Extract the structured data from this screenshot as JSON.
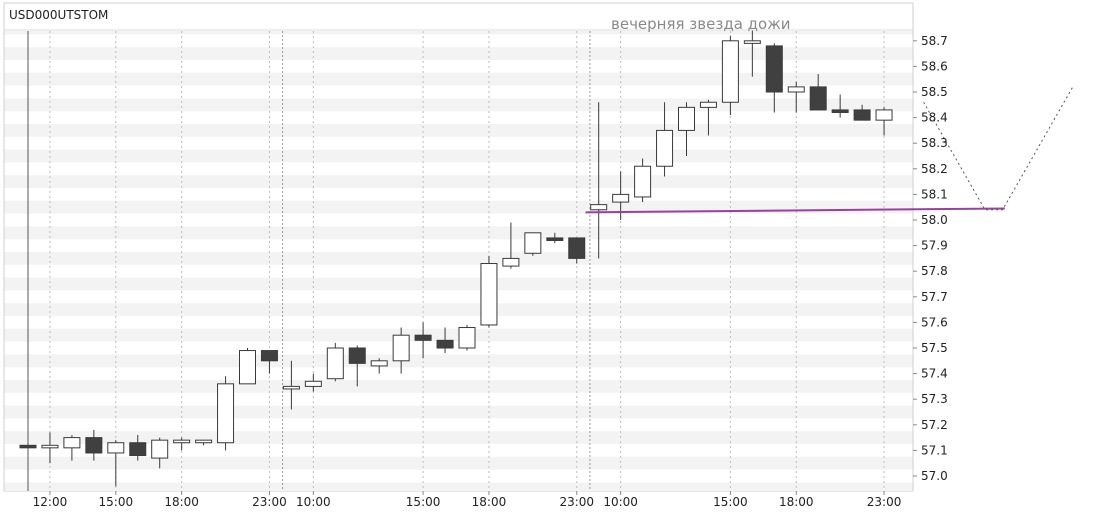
{
  "chart_data": {
    "type": "candlestick",
    "title": "USD000UTSTOM",
    "annotation": "вечерняя звезда дожи",
    "ylim": [
      56.96,
      58.74
    ],
    "y_ticks": [
      "57.0",
      "57.1",
      "57.2",
      "57.3",
      "57.4",
      "57.5",
      "57.6",
      "57.7",
      "57.8",
      "57.9",
      "58.0",
      "58.1",
      "58.2",
      "58.3",
      "58.4",
      "58.5",
      "58.6",
      "58.7"
    ],
    "x_ticks": [
      {
        "label": "12:00",
        "index": 1
      },
      {
        "label": "15:00",
        "index": 4
      },
      {
        "label": "18:00",
        "index": 7
      },
      {
        "label": "23:00",
        "index": 11
      },
      {
        "label": "10:00",
        "index": 13
      },
      {
        "label": "15:00",
        "index": 18
      },
      {
        "label": "18:00",
        "index": 21
      },
      {
        "label": "23:00",
        "index": 25
      },
      {
        "label": "10:00",
        "index": 27
      },
      {
        "label": "15:00",
        "index": 32
      },
      {
        "label": "18:00",
        "index": 35
      },
      {
        "label": "23:00",
        "index": 39
      }
    ],
    "session_separators": [
      11.6,
      25.6
    ],
    "candles": [
      {
        "o": 57.12,
        "h": 57.12,
        "l": 57.11,
        "c": 57.11
      },
      {
        "o": 57.11,
        "h": 57.17,
        "l": 57.05,
        "c": 57.12
      },
      {
        "o": 57.11,
        "h": 57.16,
        "l": 57.06,
        "c": 57.15
      },
      {
        "o": 57.15,
        "h": 57.18,
        "l": 57.06,
        "c": 57.09
      },
      {
        "o": 57.09,
        "h": 57.14,
        "l": 56.96,
        "c": 57.13
      },
      {
        "o": 57.13,
        "h": 57.16,
        "l": 57.06,
        "c": 57.08
      },
      {
        "o": 57.07,
        "h": 57.15,
        "l": 57.03,
        "c": 57.14
      },
      {
        "o": 57.13,
        "h": 57.15,
        "l": 57.1,
        "c": 57.14
      },
      {
        "o": 57.13,
        "h": 57.14,
        "l": 57.12,
        "c": 57.14
      },
      {
        "o": 57.13,
        "h": 57.39,
        "l": 57.1,
        "c": 57.36
      },
      {
        "o": 57.36,
        "h": 57.5,
        "l": 57.36,
        "c": 57.49
      },
      {
        "o": 57.49,
        "h": 57.49,
        "l": 57.4,
        "c": 57.45
      },
      {
        "o": 57.34,
        "h": 57.45,
        "l": 57.26,
        "c": 57.35
      },
      {
        "o": 57.35,
        "h": 57.4,
        "l": 57.33,
        "c": 57.37
      },
      {
        "o": 57.38,
        "h": 57.52,
        "l": 57.37,
        "c": 57.5
      },
      {
        "o": 57.5,
        "h": 57.51,
        "l": 57.35,
        "c": 57.44
      },
      {
        "o": 57.43,
        "h": 57.46,
        "l": 57.4,
        "c": 57.45
      },
      {
        "o": 57.45,
        "h": 57.58,
        "l": 57.4,
        "c": 57.55
      },
      {
        "o": 57.55,
        "h": 57.6,
        "l": 57.46,
        "c": 57.53
      },
      {
        "o": 57.53,
        "h": 57.58,
        "l": 57.48,
        "c": 57.5
      },
      {
        "o": 57.5,
        "h": 57.59,
        "l": 57.49,
        "c": 57.58
      },
      {
        "o": 57.59,
        "h": 57.86,
        "l": 57.58,
        "c": 57.83
      },
      {
        "o": 57.82,
        "h": 57.99,
        "l": 57.81,
        "c": 57.85
      },
      {
        "o": 57.87,
        "h": 57.95,
        "l": 57.86,
        "c": 57.95
      },
      {
        "o": 57.93,
        "h": 57.95,
        "l": 57.91,
        "c": 57.92
      },
      {
        "o": 57.93,
        "h": 57.93,
        "l": 57.83,
        "c": 57.85
      },
      {
        "o": 58.04,
        "h": 58.46,
        "l": 57.85,
        "c": 58.06
      },
      {
        "o": 58.07,
        "h": 58.19,
        "l": 58.0,
        "c": 58.1
      },
      {
        "o": 58.09,
        "h": 58.24,
        "l": 58.07,
        "c": 58.21
      },
      {
        "o": 58.21,
        "h": 58.46,
        "l": 58.17,
        "c": 58.35
      },
      {
        "o": 58.35,
        "h": 58.46,
        "l": 58.25,
        "c": 58.44
      },
      {
        "o": 58.44,
        "h": 58.47,
        "l": 58.33,
        "c": 58.46
      },
      {
        "o": 58.46,
        "h": 58.72,
        "l": 58.41,
        "c": 58.7
      },
      {
        "o": 58.69,
        "h": 58.74,
        "l": 58.56,
        "c": 58.7
      },
      {
        "o": 58.68,
        "h": 58.69,
        "l": 58.42,
        "c": 58.5
      },
      {
        "o": 58.5,
        "h": 58.54,
        "l": 58.42,
        "c": 58.52
      },
      {
        "o": 58.52,
        "h": 58.57,
        "l": 58.43,
        "c": 58.43
      },
      {
        "o": 58.43,
        "h": 58.49,
        "l": 58.4,
        "c": 58.42
      },
      {
        "o": 58.43,
        "h": 58.45,
        "l": 58.39,
        "c": 58.39
      },
      {
        "o": 58.39,
        "h": 58.44,
        "l": 58.33,
        "c": 58.43
      }
    ],
    "support_line": {
      "color": "#9b3fa2",
      "from": {
        "index": 25.4,
        "value": 58.03
      },
      "to": {
        "index": 44.5,
        "value": 58.045
      }
    },
    "projection_path": [
      {
        "index": 40.8,
        "value": 58.46
      },
      {
        "index": 43.6,
        "value": 58.04
      },
      {
        "index": 44.4,
        "value": 58.04
      },
      {
        "index": 47.6,
        "value": 58.52
      }
    ],
    "colors": {
      "bull_fill": "#ffffff",
      "bear_fill": "#404040",
      "candle_outline": "#3a3a3a",
      "band": "#f3f3f3",
      "projection": "#555555"
    }
  }
}
